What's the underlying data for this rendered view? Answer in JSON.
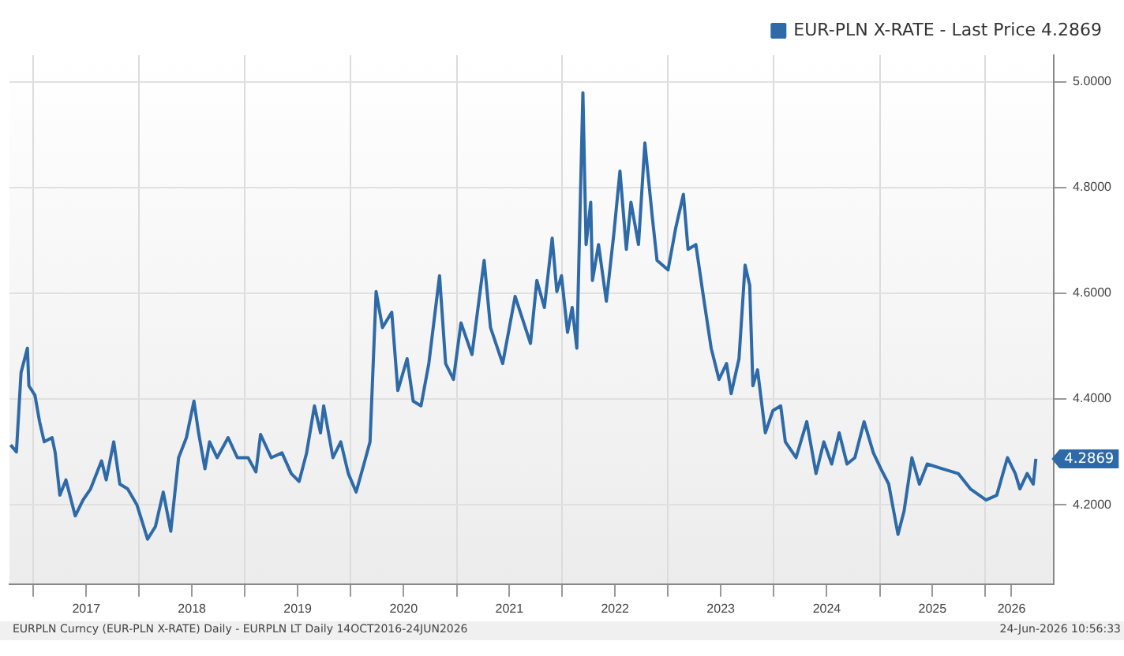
{
  "chart_data": {
    "type": "line",
    "x": [
      "2016-10-14",
      "2016-11-03",
      "2016-11-19",
      "2016-12-11",
      "2016-12-16",
      "2017-01-06",
      "2017-01-22",
      "2017-02-07",
      "2017-03-06",
      "2017-03-17",
      "2017-04-02",
      "2017-04-23",
      "2017-05-25",
      "2017-06-21",
      "2017-07-17",
      "2017-08-24",
      "2017-09-09",
      "2017-10-05",
      "2017-10-26",
      "2017-11-22",
      "2017-12-24",
      "2018-01-30",
      "2018-02-26",
      "2018-03-25",
      "2018-04-20",
      "2018-05-17",
      "2018-06-13",
      "2018-07-09",
      "2018-07-25",
      "2018-08-16",
      "2018-09-01",
      "2018-09-27",
      "2018-11-04",
      "2018-12-06",
      "2019-01-12",
      "2019-02-08",
      "2019-02-24",
      "2019-04-02",
      "2019-05-09",
      "2019-06-10",
      "2019-07-07",
      "2019-08-02",
      "2019-08-29",
      "2019-09-19",
      "2019-09-30",
      "2019-11-01",
      "2019-11-28",
      "2019-12-24",
      "2020-01-20",
      "2020-02-16",
      "2020-03-08",
      "2020-03-29",
      "2020-04-20",
      "2020-05-22",
      "2020-06-12",
      "2020-07-14",
      "2020-08-04",
      "2020-08-31",
      "2020-09-27",
      "2020-11-03",
      "2020-11-24",
      "2020-12-21",
      "2021-01-16",
      "2021-02-23",
      "2021-04-06",
      "2021-04-28",
      "2021-06-09",
      "2021-07-22",
      "2021-09-13",
      "2021-10-05",
      "2021-10-31",
      "2021-11-27",
      "2021-12-13",
      "2021-12-29",
      "2022-01-19",
      "2022-02-04",
      "2022-02-20",
      "2022-03-13",
      "2022-03-24",
      "2022-04-09",
      "2022-04-15",
      "2022-05-06",
      "2022-06-02",
      "2022-06-28",
      "2022-07-19",
      "2022-08-10",
      "2022-08-26",
      "2022-09-21",
      "2022-10-13",
      "2022-11-08",
      "2022-11-24",
      "2023-01-01",
      "2023-01-27",
      "2023-02-23",
      "2023-03-11",
      "2023-04-07",
      "2023-05-03",
      "2023-05-30",
      "2023-06-26",
      "2023-07-22",
      "2023-08-07",
      "2023-09-03",
      "2023-09-24",
      "2023-10-10",
      "2023-10-21",
      "2023-11-06",
      "2023-12-03",
      "2023-12-29",
      "2024-01-25",
      "2024-02-10",
      "2024-03-18",
      "2024-04-24",
      "2024-05-26",
      "2024-06-22",
      "2024-07-19",
      "2024-08-14",
      "2024-09-10",
      "2024-10-07",
      "2024-11-08",
      "2024-12-10",
      "2025-01-05",
      "2025-02-01",
      "2025-03-05",
      "2025-03-26",
      "2025-04-22",
      "2025-05-18",
      "2025-06-14",
      "2025-08-06",
      "2025-09-29",
      "2025-11-10",
      "2026-01-03",
      "2026-02-09",
      "2026-03-18",
      "2026-04-14",
      "2026-04-30",
      "2026-05-25",
      "2026-06-15",
      "2026-06-24"
    ],
    "series": [
      {
        "name": "EUR-PLN X-RATE - Last Price 4.2869",
        "color": "#2e6aa8",
        "values": [
          4.313,
          4.3,
          4.45,
          4.496,
          4.425,
          4.407,
          4.357,
          4.319,
          4.327,
          4.298,
          4.218,
          4.247,
          4.179,
          4.209,
          4.23,
          4.283,
          4.247,
          4.319,
          4.239,
          4.23,
          4.2,
          4.135,
          4.159,
          4.224,
          4.15,
          4.289,
          4.327,
          4.396,
          4.336,
          4.268,
          4.319,
          4.289,
          4.327,
          4.289,
          4.289,
          4.262,
          4.333,
          4.289,
          4.298,
          4.259,
          4.244,
          4.298,
          4.387,
          4.336,
          4.387,
          4.289,
          4.319,
          4.259,
          4.224,
          4.277,
          4.319,
          4.603,
          4.535,
          4.564,
          4.416,
          4.476,
          4.396,
          4.387,
          4.467,
          4.633,
          4.467,
          4.437,
          4.544,
          4.484,
          4.662,
          4.535,
          4.467,
          4.594,
          4.505,
          4.624,
          4.573,
          4.704,
          4.603,
          4.633,
          4.526,
          4.573,
          4.496,
          4.979,
          4.692,
          4.772,
          4.624,
          4.692,
          4.585,
          4.713,
          4.831,
          4.683,
          4.772,
          4.692,
          4.884,
          4.742,
          4.662,
          4.644,
          4.722,
          4.787,
          4.683,
          4.692,
          4.594,
          4.496,
          4.437,
          4.467,
          4.41,
          4.476,
          4.653,
          4.615,
          4.425,
          4.455,
          4.336,
          4.378,
          4.387,
          4.319,
          4.289,
          4.357,
          4.259,
          4.319,
          4.277,
          4.336,
          4.277,
          4.289,
          4.357,
          4.298,
          4.268,
          4.239,
          4.144,
          4.188,
          4.289,
          4.239,
          4.277,
          4.268,
          4.259,
          4.23,
          4.209,
          4.218,
          4.289,
          4.259,
          4.23,
          4.259,
          4.239,
          4.2869
        ]
      }
    ],
    "xlim": [
      "2016-10-10",
      "2026-08-25"
    ],
    "xticks": [
      {
        "value": "2017-01-01",
        "label": null
      },
      {
        "value": "2017-07-02",
        "label": "2017"
      },
      {
        "value": "2018-01-01",
        "label": null
      },
      {
        "value": "2018-07-02",
        "label": "2018"
      },
      {
        "value": "2019-01-01",
        "label": null
      },
      {
        "value": "2019-07-02",
        "label": "2019"
      },
      {
        "value": "2020-01-01",
        "label": null
      },
      {
        "value": "2020-07-02",
        "label": "2020"
      },
      {
        "value": "2021-01-01",
        "label": null
      },
      {
        "value": "2021-07-02",
        "label": "2021"
      },
      {
        "value": "2022-01-01",
        "label": null
      },
      {
        "value": "2022-07-02",
        "label": "2022"
      },
      {
        "value": "2023-01-01",
        "label": null
      },
      {
        "value": "2023-07-02",
        "label": "2023"
      },
      {
        "value": "2024-01-01",
        "label": null
      },
      {
        "value": "2024-07-02",
        "label": "2024"
      },
      {
        "value": "2025-01-01",
        "label": null
      },
      {
        "value": "2025-07-02",
        "label": "2025"
      },
      {
        "value": "2026-01-01",
        "label": null
      },
      {
        "value": "2026-04-01",
        "label": "2026"
      }
    ],
    "ylim": [
      4.05,
      5.05
    ],
    "yticks": [
      {
        "value": 4.2,
        "label": "4.2000"
      },
      {
        "value": 4.4,
        "label": "4.4000"
      },
      {
        "value": 4.6,
        "label": "4.6000"
      },
      {
        "value": 4.8,
        "label": "4.8000"
      },
      {
        "value": 5.0,
        "label": "5.0000"
      }
    ],
    "grid": true,
    "legend": "top right",
    "marker": "none",
    "line_style": "solid",
    "annotations": [
      {
        "text": "4.2869",
        "x": "2026-06-24",
        "y": 4.2869
      },
      "EURPLN Curncy (EUR-PLN X-RATE) Daily - EURPLN LT Daily 14OCT2016-24JUN2026",
      "24-Jun-2026 10:56:33"
    ]
  }
}
